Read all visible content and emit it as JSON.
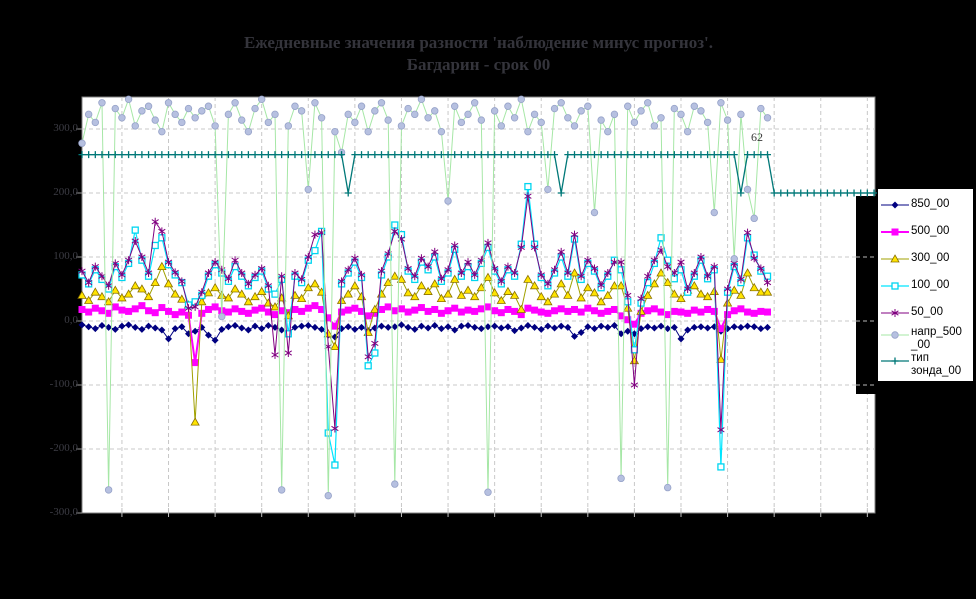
{
  "title": {
    "line1": "Ежедневные значения разности 'наблюдение минус прогноз'.",
    "line2": "Багдарин - срок 00"
  },
  "annotation": {
    "text": "62"
  },
  "colors": {
    "background": "#000000",
    "plot_background": "#ffffff",
    "plot_border": "#808080",
    "grid": "#c8c8c8",
    "title_text": "#34343b",
    "axis_text": "#3d3d45",
    "annotation_text": "#3a3a3a",
    "legend_background": "#ffffff",
    "legend_border": "#000000",
    "legend_text": "#000000"
  },
  "axis": {
    "y_tick_labels": [
      "300,0",
      "200,0",
      "100,0",
      "0,0",
      "-100,0",
      "-200,0",
      "-300,0"
    ],
    "y_tick_values": [
      300,
      200,
      100,
      0,
      -100,
      -200,
      -300
    ]
  },
  "legend": {
    "items": [
      {
        "label": "850_00",
        "series": 0
      },
      {
        "label": "500_00",
        "series": 1
      },
      {
        "label": "300_00",
        "series": 2
      },
      {
        "label": "100_00",
        "series": 3
      },
      {
        "label": "50_00",
        "series": 4
      },
      {
        "label": "напр_500\n_00",
        "series": 5
      },
      {
        "label": "тип\nзонда_00",
        "series": 6
      }
    ]
  },
  "chart_data": {
    "type": "line",
    "title": "Ежедневные значения разности 'наблюдение минус прогноз'. Багдарин - срок 00",
    "x_points": 120,
    "x_gridline_every": 7,
    "y_axis": {
      "min": -300,
      "max": 350,
      "tick_step": 100
    },
    "grid": "dashed",
    "legend_position": "right",
    "annotations": [
      {
        "text": "62",
        "series": "тип зонда_00",
        "point_index": 102
      }
    ],
    "series": [
      {
        "name": "850_00",
        "scale": "left",
        "line": "#000080",
        "width": 1,
        "marker": "diamond",
        "marker_fill": "#000080",
        "marker_stroke": "#000080",
        "values": [
          -6,
          -9,
          -12,
          -7,
          -10,
          -13,
          -8,
          -6,
          -10,
          -13,
          -8,
          -11,
          -14,
          -28,
          -12,
          -9,
          -20,
          -16,
          -10,
          -22,
          -30,
          -13,
          -9,
          -7,
          -11,
          -14,
          -8,
          -12,
          -7,
          -10,
          -14,
          -18,
          -10,
          -8,
          -7,
          -10,
          -13,
          -22,
          -25,
          -12,
          -9,
          -13,
          -10,
          -15,
          -11,
          -8,
          -10,
          -9,
          -6,
          -10,
          -13,
          -8,
          -11,
          -7,
          -12,
          -9,
          -14,
          -8,
          -7,
          -10,
          -12,
          -9,
          -8,
          -11,
          -9,
          -15,
          -11,
          -7,
          -10,
          -13,
          -8,
          -11,
          -8,
          -10,
          -24,
          -18,
          -9,
          -12,
          -8,
          -10,
          -7,
          -20,
          -16,
          -20,
          -12,
          -9,
          -11,
          -8,
          -12,
          -10,
          -28,
          -14,
          -10,
          -9,
          -11,
          -9,
          -16,
          -12,
          -9,
          -10,
          -8,
          -9,
          -12,
          -10
        ]
      },
      {
        "name": "500_00",
        "scale": "left",
        "line": "#ff00ff",
        "width": 2,
        "marker": "square",
        "marker_fill": "#ff00ff",
        "marker_stroke": "#ff00ff",
        "values": [
          18,
          14,
          20,
          16,
          12,
          22,
          17,
          15,
          19,
          24,
          16,
          13,
          21,
          15,
          10,
          14,
          9,
          -65,
          12,
          18,
          22,
          16,
          14,
          19,
          15,
          12,
          17,
          20,
          14,
          10,
          16,
          13,
          18,
          15,
          20,
          24,
          18,
          5,
          -8,
          14,
          17,
          20,
          15,
          8,
          12,
          18,
          22,
          16,
          19,
          14,
          17,
          21,
          15,
          18,
          12,
          16,
          20,
          14,
          17,
          15,
          19,
          22,
          16,
          13,
          18,
          15,
          10,
          20,
          17,
          14,
          12,
          16,
          19,
          15,
          18,
          14,
          20,
          16,
          12,
          15,
          18,
          8,
          2,
          -5,
          12,
          16,
          19,
          14,
          10,
          15,
          14,
          12,
          17,
          14,
          18,
          15,
          -12,
          10,
          16,
          19,
          14,
          12,
          15,
          14
        ]
      },
      {
        "name": "300_00",
        "scale": "left",
        "line": "#a0a000",
        "width": 1,
        "marker": "triangle",
        "marker_fill": "#ffe400",
        "marker_stroke": "#8a7000",
        "values": [
          40,
          32,
          45,
          38,
          30,
          48,
          36,
          42,
          55,
          50,
          38,
          60,
          85,
          58,
          42,
          34,
          25,
          -158,
          30,
          44,
          52,
          40,
          36,
          50,
          42,
          30,
          38,
          46,
          28,
          22,
          36,
          8,
          40,
          35,
          52,
          58,
          45,
          -20,
          -40,
          32,
          42,
          55,
          38,
          -18,
          18,
          42,
          60,
          70,
          65,
          44,
          38,
          55,
          46,
          58,
          35,
          42,
          65,
          40,
          48,
          38,
          52,
          68,
          44,
          32,
          46,
          40,
          18,
          65,
          55,
          38,
          30,
          42,
          58,
          40,
          75,
          36,
          52,
          44,
          30,
          40,
          55,
          55,
          20,
          -62,
          15,
          40,
          58,
          75,
          60,
          42,
          35,
          48,
          55,
          42,
          38,
          46,
          -60,
          28,
          48,
          40,
          75,
          52,
          45,
          45
        ]
      },
      {
        "name": "100_00",
        "scale": "left",
        "line": "#00e5ff",
        "width": 1.2,
        "marker": "open-square",
        "marker_fill": "#ffffff",
        "marker_stroke": "#00d5f0",
        "values": [
          72,
          58,
          80,
          65,
          50,
          85,
          68,
          90,
          142,
          95,
          70,
          118,
          130,
          88,
          72,
          60,
          25,
          30,
          40,
          70,
          88,
          75,
          62,
          85,
          70,
          55,
          68,
          78,
          50,
          42,
          65,
          -20,
          70,
          60,
          95,
          110,
          140,
          -175,
          -225,
          58,
          75,
          92,
          68,
          -70,
          -50,
          72,
          100,
          150,
          135,
          78,
          65,
          92,
          80,
          100,
          62,
          75,
          112,
          70,
          85,
          68,
          90,
          115,
          78,
          58,
          80,
          70,
          120,
          210,
          120,
          68,
          55,
          75,
          100,
          70,
          128,
          65,
          90,
          78,
          52,
          70,
          95,
          80,
          30,
          -45,
          28,
          60,
          90,
          130,
          95,
          66,
          80,
          45,
          70,
          95,
          66,
          80,
          -228,
          45,
          85,
          60,
          130,
          103,
          78,
          70
        ]
      },
      {
        "name": "50_00",
        "scale": "left",
        "line": "#800080",
        "width": 1,
        "marker": "star",
        "marker_fill": "#800080",
        "marker_stroke": "#800080",
        "values": [
          78,
          60,
          85,
          70,
          55,
          90,
          72,
          95,
          125,
          100,
          75,
          155,
          140,
          92,
          76,
          62,
          20,
          22,
          45,
          75,
          92,
          80,
          66,
          95,
          75,
          58,
          72,
          82,
          55,
          -53,
          70,
          -50,
          75,
          65,
          100,
          135,
          138,
          -40,
          -168,
          62,
          80,
          98,
          72,
          -56,
          -35,
          78,
          105,
          140,
          128,
          82,
          70,
          98,
          85,
          108,
          66,
          80,
          118,
          75,
          92,
          72,
          95,
          122,
          82,
          62,
          85,
          75,
          115,
          195,
          115,
          72,
          58,
          80,
          108,
          75,
          135,
          70,
          95,
          82,
          56,
          75,
          92,
          92,
          40,
          -100,
          35,
          70,
          95,
          111,
          85,
          75,
          92,
          50,
          75,
          100,
          70,
          85,
          -170,
          50,
          90,
          65,
          138,
          98,
          82,
          60
        ]
      },
      {
        "name": "напр_500_00",
        "scale": "degrees_0_360",
        "line": "#a6e7a6",
        "width": 1,
        "marker": "circle",
        "marker_fill": "#b6c0e0",
        "marker_stroke": "#96a2c8",
        "values": [
          320,
          345,
          338,
          355,
          20,
          350,
          342,
          358,
          335,
          348,
          352,
          340,
          330,
          355,
          345,
          338,
          350,
          342,
          348,
          352,
          335,
          170,
          345,
          355,
          340,
          330,
          350,
          358,
          338,
          345,
          20,
          335,
          352,
          348,
          280,
          355,
          342,
          15,
          330,
          312,
          345,
          338,
          352,
          330,
          348,
          355,
          340,
          25,
          335,
          350,
          345,
          358,
          342,
          348,
          330,
          270,
          352,
          338,
          345,
          355,
          340,
          18,
          348,
          335,
          352,
          342,
          358,
          330,
          345,
          338,
          280,
          350,
          355,
          342,
          335,
          348,
          352,
          260,
          340,
          330,
          345,
          30,
          352,
          338,
          348,
          355,
          335,
          342,
          22,
          350,
          345,
          330,
          352,
          348,
          338,
          260,
          355,
          340,
          220,
          345,
          280,
          255,
          350,
          342
        ]
      },
      {
        "name": "тип зонда_00",
        "scale": "left",
        "line": "#007878",
        "width": 1.3,
        "marker": "plus",
        "marker_fill": "#007878",
        "marker_stroke": "#007878",
        "values": [
          260,
          260,
          260,
          260,
          260,
          260,
          260,
          260,
          260,
          260,
          260,
          260,
          260,
          260,
          260,
          260,
          260,
          260,
          260,
          260,
          260,
          260,
          260,
          260,
          260,
          260,
          260,
          260,
          260,
          260,
          260,
          260,
          260,
          260,
          260,
          260,
          260,
          260,
          260,
          260,
          200,
          260,
          260,
          260,
          260,
          260,
          260,
          260,
          260,
          260,
          260,
          260,
          260,
          260,
          260,
          260,
          260,
          260,
          260,
          260,
          260,
          260,
          260,
          260,
          260,
          260,
          260,
          260,
          260,
          260,
          260,
          260,
          200,
          260,
          260,
          260,
          260,
          260,
          260,
          260,
          260,
          260,
          260,
          260,
          260,
          260,
          260,
          260,
          260,
          260,
          260,
          260,
          260,
          260,
          260,
          260,
          260,
          260,
          260,
          200,
          260,
          260,
          260,
          260,
          200,
          200,
          200,
          200,
          200,
          200,
          200,
          200,
          200,
          200,
          200,
          200,
          200,
          200,
          200,
          200
        ]
      }
    ]
  }
}
